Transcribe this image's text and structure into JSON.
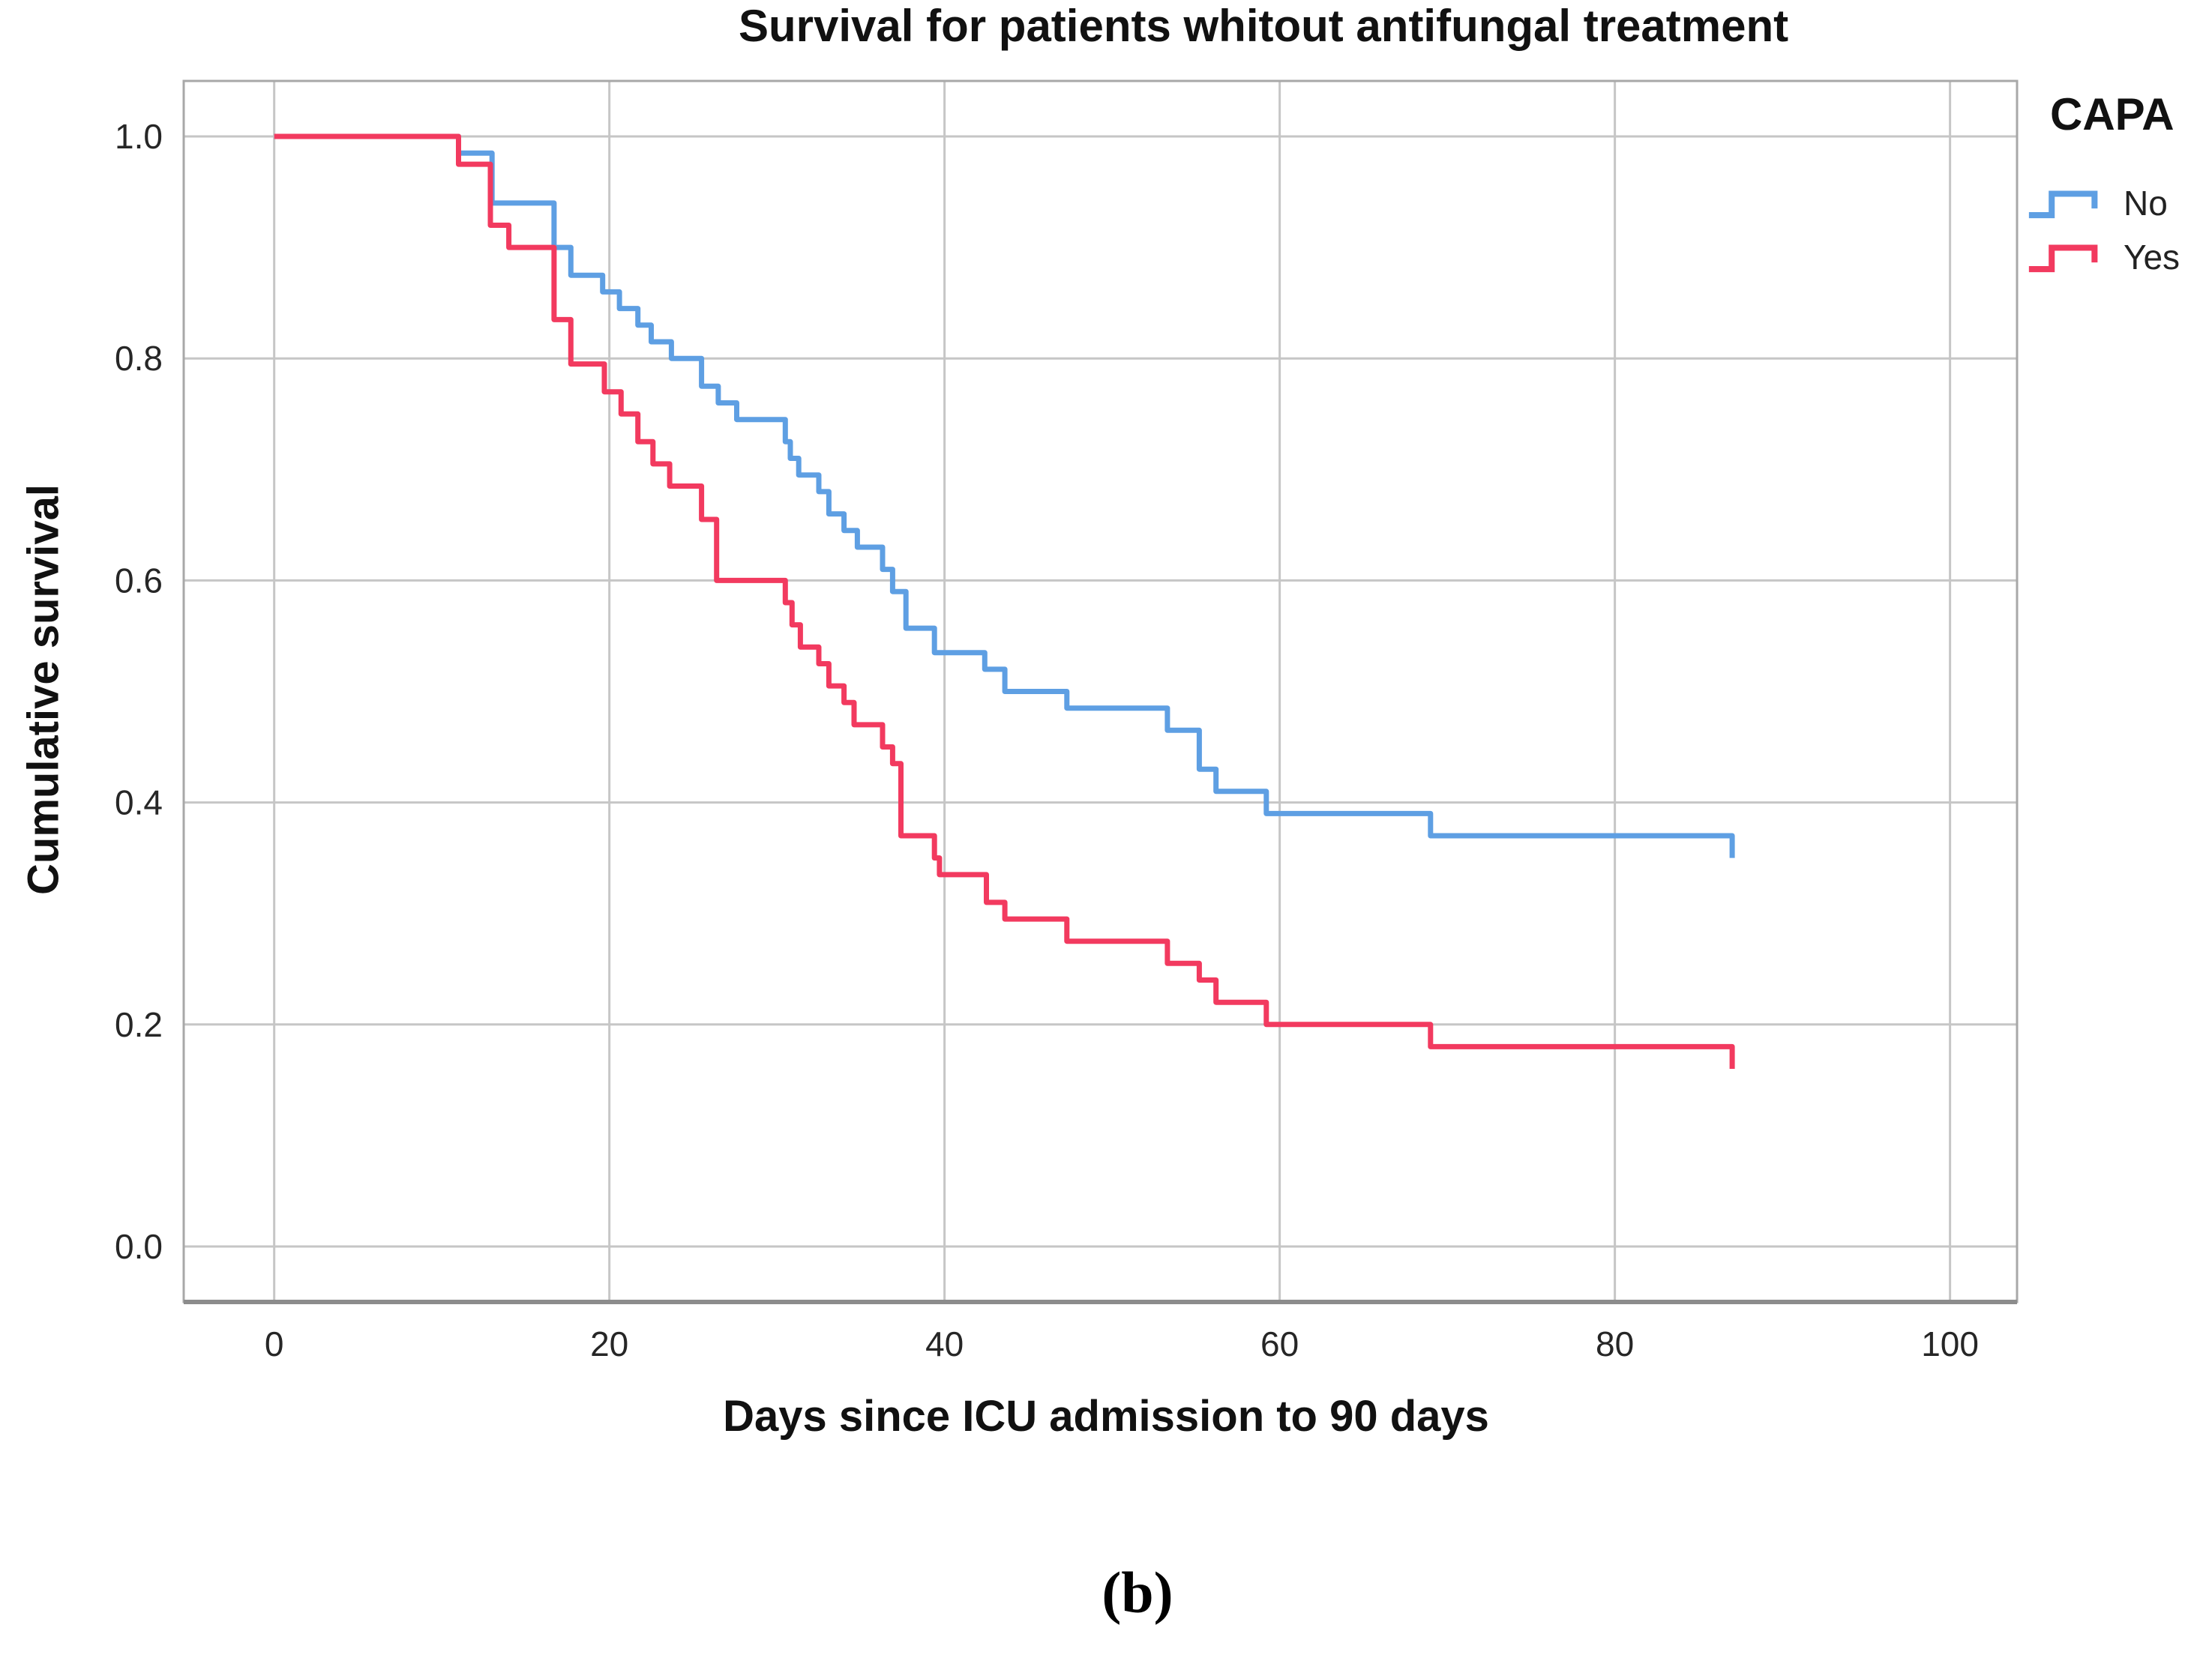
{
  "title": "Survival for patients whitout antifungal treatment",
  "caption": "(b)",
  "legend": {
    "title": "CAPA",
    "items": [
      {
        "label": "No",
        "color": "#5e9fe3"
      },
      {
        "label": "Yes",
        "color": "#f23a5f"
      }
    ]
  },
  "colors": {
    "gridline": "#c6c6c6",
    "panel_border": "#a8a8a8",
    "axis_line": "#8c8c8c",
    "tick_text": "#262626",
    "series_no": "#5e9fe3",
    "series_yes": "#f23a5f"
  },
  "chart_data": {
    "type": "line",
    "subtype": "kaplan-meier-step",
    "title": "Survival for patients whitout antifungal treatment",
    "xlabel": "Days since ICU admission to 90 days",
    "ylabel": "Cumulative survival",
    "grid": true,
    "legend_position": "right-top",
    "xlim": [
      -5.4,
      104
    ],
    "ylim": [
      -0.05,
      1.05
    ],
    "xticks": [
      0,
      20,
      40,
      60,
      80,
      100
    ],
    "xticklabels": [
      "0",
      "20",
      "40",
      "60",
      "80",
      "100"
    ],
    "yticks": [
      0.0,
      0.2,
      0.4,
      0.6,
      0.8,
      1.0
    ],
    "yticklabels": [
      "0.0",
      "0.2",
      "0.4",
      "0.6",
      "0.8",
      "1.0"
    ],
    "series": [
      {
        "name": "No",
        "color": "#5e9fe3",
        "points": [
          [
            0,
            1.0
          ],
          [
            11,
            0.985
          ],
          [
            13,
            0.94
          ],
          [
            16.7,
            0.9
          ],
          [
            17.7,
            0.875
          ],
          [
            19.6,
            0.86
          ],
          [
            20.6,
            0.845
          ],
          [
            21.7,
            0.83
          ],
          [
            22.5,
            0.815
          ],
          [
            23.7,
            0.8
          ],
          [
            25.5,
            0.775
          ],
          [
            26.5,
            0.76
          ],
          [
            27.6,
            0.745
          ],
          [
            30.5,
            0.725
          ],
          [
            30.8,
            0.71
          ],
          [
            31.3,
            0.695
          ],
          [
            32.5,
            0.68
          ],
          [
            33.1,
            0.66
          ],
          [
            34,
            0.645
          ],
          [
            34.8,
            0.63
          ],
          [
            36.3,
            0.61
          ],
          [
            36.9,
            0.59
          ],
          [
            37.7,
            0.557
          ],
          [
            39.4,
            0.535
          ],
          [
            42.4,
            0.52
          ],
          [
            43.6,
            0.5
          ],
          [
            47.3,
            0.485
          ],
          [
            53.3,
            0.465
          ],
          [
            55.2,
            0.43
          ],
          [
            56.2,
            0.41
          ],
          [
            59.2,
            0.39
          ],
          [
            69,
            0.37
          ],
          [
            87,
            0.35
          ]
        ]
      },
      {
        "name": "Yes",
        "color": "#f23a5f",
        "points": [
          [
            0,
            1.0
          ],
          [
            11,
            0.975
          ],
          [
            12.9,
            0.92
          ],
          [
            14,
            0.9
          ],
          [
            16.7,
            0.835
          ],
          [
            17.7,
            0.795
          ],
          [
            19.7,
            0.77
          ],
          [
            20.7,
            0.75
          ],
          [
            21.7,
            0.725
          ],
          [
            22.6,
            0.705
          ],
          [
            23.6,
            0.685
          ],
          [
            25.5,
            0.655
          ],
          [
            26.4,
            0.6
          ],
          [
            30.5,
            0.58
          ],
          [
            30.9,
            0.56
          ],
          [
            31.4,
            0.54
          ],
          [
            32.5,
            0.525
          ],
          [
            33.1,
            0.505
          ],
          [
            34,
            0.49
          ],
          [
            34.6,
            0.47
          ],
          [
            36.3,
            0.45
          ],
          [
            36.9,
            0.435
          ],
          [
            37.4,
            0.37
          ],
          [
            39.4,
            0.35
          ],
          [
            39.7,
            0.335
          ],
          [
            42.5,
            0.31
          ],
          [
            43.6,
            0.295
          ],
          [
            47.3,
            0.275
          ],
          [
            53.3,
            0.255
          ],
          [
            55.2,
            0.24
          ],
          [
            56.2,
            0.22
          ],
          [
            59.2,
            0.2
          ],
          [
            69,
            0.18
          ],
          [
            87,
            0.16
          ]
        ]
      }
    ]
  }
}
